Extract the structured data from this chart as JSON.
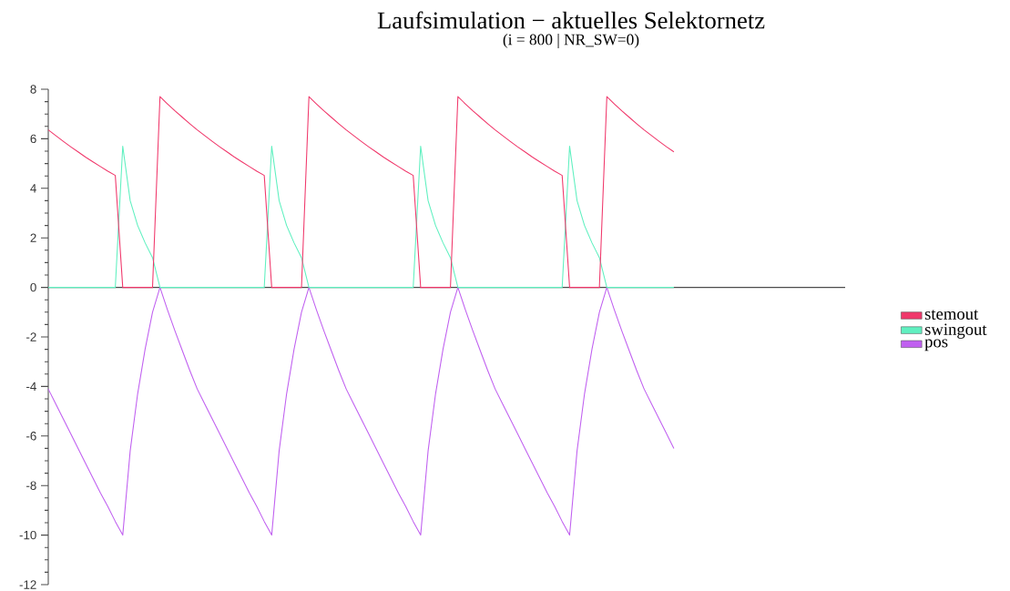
{
  "chart_data": {
    "type": "line",
    "title": "Laufsimulation − aktuelles Selektornetz",
    "subtitle": "(i = 800    |    NR_SW=0)",
    "categories": [
      null,
      null,
      null,
      null,
      null,
      null,
      null,
      null,
      null,
      null,
      null,
      null,
      null,
      null,
      null,
      null,
      null,
      null,
      null,
      null,
      null,
      null,
      null,
      null,
      null,
      null,
      null,
      null,
      null,
      null,
      null,
      null,
      null,
      null,
      null,
      null,
      null,
      null,
      null,
      null,
      null,
      null,
      null,
      null,
      null,
      null,
      null,
      null,
      null,
      null,
      null,
      null,
      null,
      null,
      null,
      null,
      null,
      null,
      null,
      null,
      null,
      null,
      null,
      null,
      null,
      null,
      null,
      null,
      null,
      null,
      null,
      null,
      null,
      null,
      null,
      null,
      null,
      null,
      null,
      null,
      null,
      null,
      null,
      null,
      null,
      null,
      null,
      null,
      null,
      null,
      null,
      null,
      null,
      null,
      null,
      null,
      null,
      null,
      null,
      null,
      null,
      null,
      null,
      null,
      null,
      null,
      null,
      null
    ],
    "series": [
      {
        "name": "stemout",
        "color": "#f0386b",
        "values": [
          6.36,
          6.13,
          5.9,
          5.68,
          5.47,
          5.26,
          5.07,
          4.88,
          4.69,
          4.52,
          0,
          0,
          0,
          0,
          0,
          7.7,
          7.41,
          7.13,
          6.87,
          6.61,
          6.36,
          6.13,
          5.9,
          5.68,
          5.47,
          5.26,
          5.07,
          4.88,
          4.69,
          4.52,
          0,
          0,
          0,
          0,
          0,
          7.7,
          7.41,
          7.13,
          6.87,
          6.61,
          6.36,
          6.13,
          5.9,
          5.68,
          5.47,
          5.26,
          5.07,
          4.88,
          4.69,
          4.52,
          0,
          0,
          0,
          0,
          0,
          7.7,
          7.41,
          7.13,
          6.87,
          6.61,
          6.36,
          6.13,
          5.9,
          5.68,
          5.47,
          5.26,
          5.07,
          4.88,
          4.69,
          4.52,
          0,
          0,
          0,
          0,
          0,
          7.7,
          7.41,
          7.13,
          6.87,
          6.61,
          6.36,
          6.13,
          5.9,
          5.68,
          5.47,
          null,
          null,
          null,
          null,
          null,
          null,
          null,
          null,
          null,
          null,
          null,
          null,
          null,
          null,
          null,
          null,
          null,
          null,
          null,
          null,
          null,
          null,
          null
        ]
      },
      {
        "name": "swingout",
        "color": "#60f0c0",
        "values": [
          0,
          0,
          0,
          0,
          0,
          0,
          0,
          0,
          0,
          0,
          5.7,
          3.5,
          2.5,
          1.8,
          1.2,
          0,
          0,
          0,
          0,
          0,
          0,
          0,
          0,
          0,
          0,
          0,
          0,
          0,
          0,
          0,
          5.7,
          3.5,
          2.5,
          1.8,
          1.2,
          0,
          0,
          0,
          0,
          0,
          0,
          0,
          0,
          0,
          0,
          0,
          0,
          0,
          0,
          0,
          5.7,
          3.5,
          2.5,
          1.8,
          1.2,
          0,
          0,
          0,
          0,
          0,
          0,
          0,
          0,
          0,
          0,
          0,
          0,
          0,
          0,
          0,
          5.7,
          3.5,
          2.5,
          1.8,
          1.2,
          0,
          0,
          0,
          0,
          0,
          0,
          0,
          0,
          0,
          0,
          null,
          null,
          null,
          null,
          null,
          null,
          null,
          null,
          null,
          null,
          null,
          null,
          null,
          null,
          null,
          null,
          null,
          null,
          null,
          null,
          null,
          null,
          null
        ]
      },
      {
        "name": "pos",
        "color": "#c060f0",
        "values": [
          -4.1,
          -4.7,
          -5.3,
          -5.9,
          -6.5,
          -7.1,
          -7.7,
          -8.3,
          -8.85,
          -9.45,
          -10,
          -6.6,
          -4.3,
          -2.5,
          -1,
          0,
          -0.9,
          -1.75,
          -2.55,
          -3.35,
          -4.1,
          -4.7,
          -5.3,
          -5.9,
          -6.5,
          -7.1,
          -7.7,
          -8.3,
          -8.85,
          -9.45,
          -10,
          -6.6,
          -4.3,
          -2.5,
          -1,
          0,
          -0.9,
          -1.75,
          -2.55,
          -3.35,
          -4.1,
          -4.7,
          -5.3,
          -5.9,
          -6.5,
          -7.1,
          -7.7,
          -8.3,
          -8.85,
          -9.45,
          -10,
          -6.6,
          -4.3,
          -2.5,
          -1,
          0,
          -0.9,
          -1.75,
          -2.55,
          -3.35,
          -4.1,
          -4.7,
          -5.3,
          -5.9,
          -6.5,
          -7.1,
          -7.7,
          -8.3,
          -8.85,
          -9.45,
          -10,
          -6.6,
          -4.3,
          -2.5,
          -1,
          0,
          -0.9,
          -1.75,
          -2.55,
          -3.35,
          -4.1,
          -4.7,
          -5.3,
          -5.9,
          -6.5,
          null,
          null,
          null,
          null,
          null,
          null,
          null,
          null,
          null,
          null,
          null,
          null,
          null,
          null,
          null,
          null,
          null,
          null,
          null,
          null,
          null,
          null,
          null
        ]
      }
    ],
    "ylim": [
      -12,
      8
    ],
    "yticks": [
      -12,
      -10,
      -8,
      -6,
      -4,
      -2,
      0,
      2,
      4,
      6,
      8
    ],
    "legend": "right",
    "marker": "none"
  }
}
